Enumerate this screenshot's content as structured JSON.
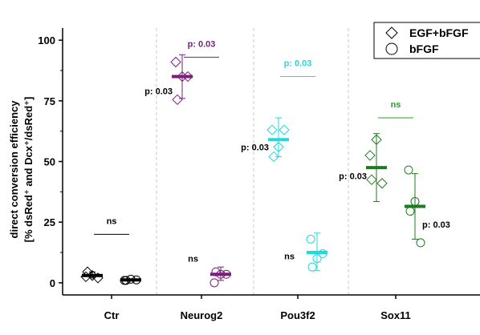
{
  "chart_data": {
    "type": "scatter",
    "ylabel_lines": [
      "direct conversion efficiency",
      "[% dsRed⁺ and Dcx⁺/dsRed⁺]"
    ],
    "ylim": [
      -5,
      105
    ],
    "yticks": [
      0,
      25,
      50,
      75,
      100
    ],
    "categories": [
      "Ctr",
      "Neurog2",
      "Pou3f2",
      "Sox11"
    ],
    "legend": {
      "position": "top-right",
      "entries": [
        {
          "label": "EGF+bFGF",
          "marker": "diamond"
        },
        {
          "label": "bFGF",
          "marker": "circle"
        }
      ]
    },
    "groups": [
      {
        "category": "Ctr",
        "color": "#000000",
        "series": [
          {
            "condition": "EGF+bFGF",
            "marker": "diamond",
            "points": [
              2.5,
              3.0,
              4.5,
              2.0
            ],
            "mean": 3.0,
            "err": [
              2.0,
              4.5
            ]
          },
          {
            "condition": "bFGF",
            "marker": "circle",
            "points": [
              1.0,
              1.5,
              1.0,
              1.2
            ],
            "mean": 1.2,
            "err": [
              0.8,
              1.6
            ]
          }
        ],
        "comparison": {
          "label": "ns",
          "y": 20,
          "color": "#000000"
        }
      },
      {
        "category": "Neurog2",
        "color": "#7B1E7A",
        "series": [
          {
            "condition": "EGF+bFGF",
            "marker": "diamond",
            "points": [
              91,
              85,
              75.5,
              85
            ],
            "mean": 85,
            "err": [
              76,
              94
            ]
          },
          {
            "condition": "bFGF",
            "marker": "circle",
            "points": [
              0,
              3.5,
              4.5,
              3.5
            ],
            "mean": 3.5,
            "err": [
              1,
              6.5
            ]
          }
        ],
        "annotations": [
          {
            "label": "p: 0.03",
            "y": 79
          },
          {
            "label": "ns",
            "y": 10
          }
        ],
        "comparison": {
          "label": "p: 0.03",
          "y": 93,
          "color": "#7B1E7A"
        }
      },
      {
        "category": "Pou3f2",
        "color": "#1FD9E0",
        "series": [
          {
            "condition": "EGF+bFGF",
            "marker": "diamond",
            "points": [
              63,
              56,
              52,
              63
            ],
            "mean": 59,
            "err": [
              52,
              68
            ]
          },
          {
            "condition": "bFGF",
            "marker": "circle",
            "points": [
              18,
              10,
              6.5,
              12
            ],
            "mean": 12.5,
            "err": [
              5,
              20.5
            ]
          }
        ],
        "annotations": [
          {
            "label": "p: 0.03",
            "y": 56
          },
          {
            "label": "ns",
            "y": 11
          }
        ],
        "comparison": {
          "label": "p: 0.03",
          "y": 85,
          "color": "#1FD9E0"
        }
      },
      {
        "category": "Sox11",
        "color": "#1F7A1F",
        "series": [
          {
            "condition": "EGF+bFGF",
            "marker": "diamond",
            "points": [
              52.5,
              59,
              42.5,
              41
            ],
            "mean": 47.5,
            "err": [
              33.5,
              61.5
            ]
          },
          {
            "condition": "bFGF",
            "marker": "circle",
            "points": [
              46.5,
              33.5,
              29.5,
              16.5
            ],
            "mean": 31.5,
            "err": [
              18,
              45
            ]
          }
        ],
        "annotations": [
          {
            "label": "p: 0.03",
            "y": 44
          },
          {
            "label": "p: 0.03",
            "y": 24
          }
        ],
        "comparison": {
          "label": "ns",
          "y": 68,
          "color": "#2E9E2E"
        }
      }
    ]
  }
}
